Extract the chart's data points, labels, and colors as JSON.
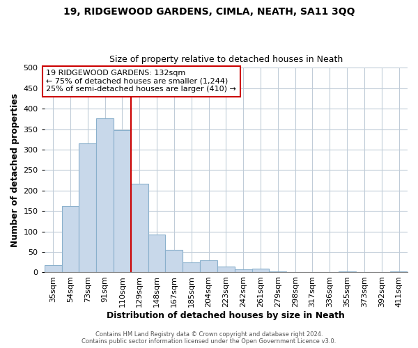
{
  "title": "19, RIDGEWOOD GARDENS, CIMLA, NEATH, SA11 3QQ",
  "subtitle": "Size of property relative to detached houses in Neath",
  "xlabel": "Distribution of detached houses by size in Neath",
  "ylabel": "Number of detached properties",
  "bar_labels": [
    "35sqm",
    "54sqm",
    "73sqm",
    "91sqm",
    "110sqm",
    "129sqm",
    "148sqm",
    "167sqm",
    "185sqm",
    "204sqm",
    "223sqm",
    "242sqm",
    "261sqm",
    "279sqm",
    "298sqm",
    "317sqm",
    "336sqm",
    "355sqm",
    "373sqm",
    "392sqm",
    "411sqm"
  ],
  "bar_values": [
    18,
    163,
    315,
    377,
    347,
    217,
    93,
    56,
    25,
    30,
    15,
    8,
    10,
    3,
    1,
    0,
    0,
    2,
    0,
    0,
    3
  ],
  "bar_color": "#c8d8ea",
  "bar_edge_color": "#8ab0cc",
  "vline_x": 5.0,
  "vline_color": "#cc0000",
  "annotation_title": "19 RIDGEWOOD GARDENS: 132sqm",
  "annotation_line1": "← 75% of detached houses are smaller (1,244)",
  "annotation_line2": "25% of semi-detached houses are larger (410) →",
  "annotation_box_color": "#ffffff",
  "annotation_box_edge": "#cc0000",
  "ylim": [
    0,
    500
  ],
  "yticks": [
    0,
    50,
    100,
    150,
    200,
    250,
    300,
    350,
    400,
    450,
    500
  ],
  "footer1": "Contains HM Land Registry data © Crown copyright and database right 2024.",
  "footer2": "Contains public sector information licensed under the Open Government Licence v3.0.",
  "background_color": "#ffffff",
  "grid_color": "#c0ccd8"
}
